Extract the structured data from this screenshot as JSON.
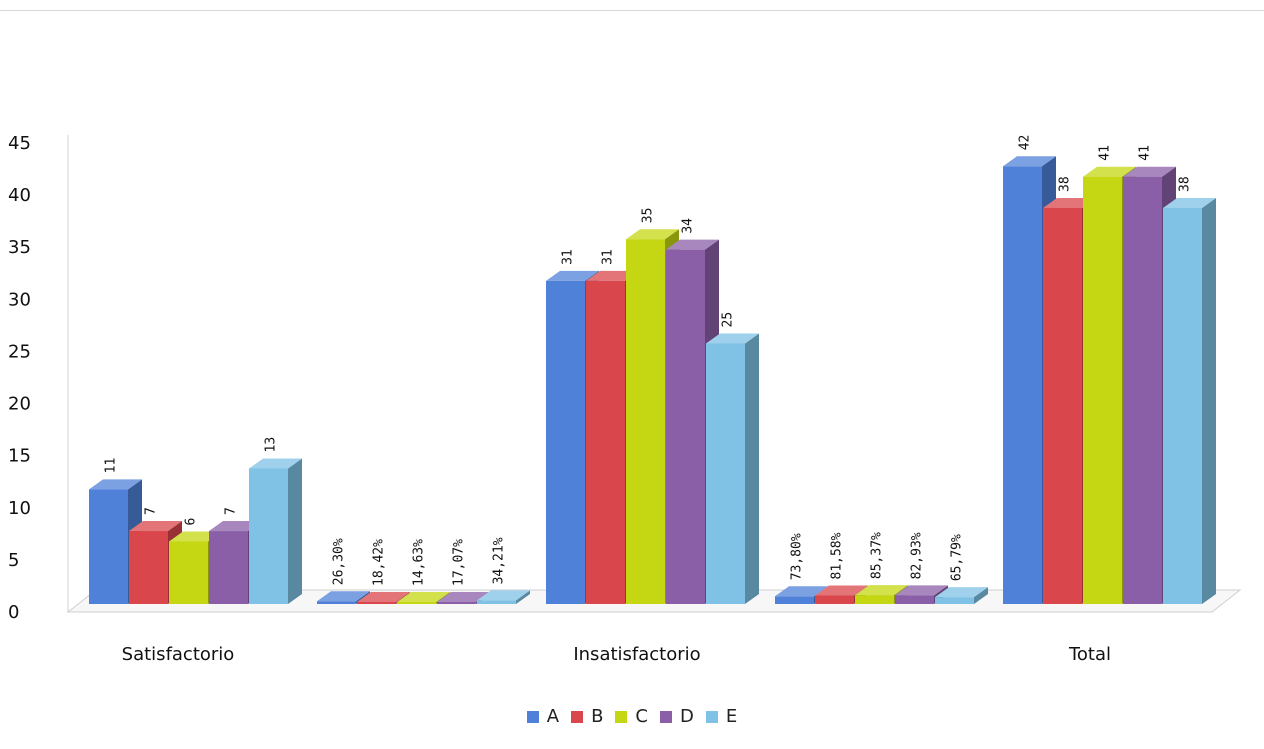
{
  "chart_data": {
    "type": "bar",
    "categories": [
      "Satisfactorio",
      "",
      "Insatisfactorio",
      "",
      "Total"
    ],
    "series": [
      {
        "name": "A",
        "color": "#4f81d9",
        "values": [
          11,
          0.263,
          31,
          0.738,
          42
        ],
        "labels": [
          "11",
          "26,30%",
          "31",
          "73,80%",
          "42"
        ]
      },
      {
        "name": "B",
        "color": "#d9464b",
        "values": [
          7,
          0.1842,
          31,
          0.8158,
          38
        ],
        "labels": [
          "7",
          "18,42%",
          "31",
          "81,58%",
          "38"
        ]
      },
      {
        "name": "C",
        "color": "#c4d712",
        "values": [
          6,
          0.1463,
          35,
          0.8537,
          41
        ],
        "labels": [
          "6",
          "14,63%",
          "35",
          "85,37%",
          "41"
        ]
      },
      {
        "name": "D",
        "color": "#8b5fa8",
        "values": [
          7,
          0.1707,
          34,
          0.8293,
          41
        ],
        "labels": [
          "7",
          "17,07%",
          "34",
          "82,93%",
          "41"
        ]
      },
      {
        "name": "E",
        "color": "#7fc2e6",
        "values": [
          13,
          0.3421,
          25,
          0.6579,
          38
        ],
        "labels": [
          "13",
          "34,21%",
          "25",
          "65,79%",
          "38"
        ]
      }
    ],
    "ylim": [
      0,
      45
    ],
    "yticks": [
      0,
      5,
      10,
      15,
      20,
      25,
      30,
      35,
      40,
      45
    ],
    "grid": false,
    "legend": "bottom",
    "three_d": true
  }
}
